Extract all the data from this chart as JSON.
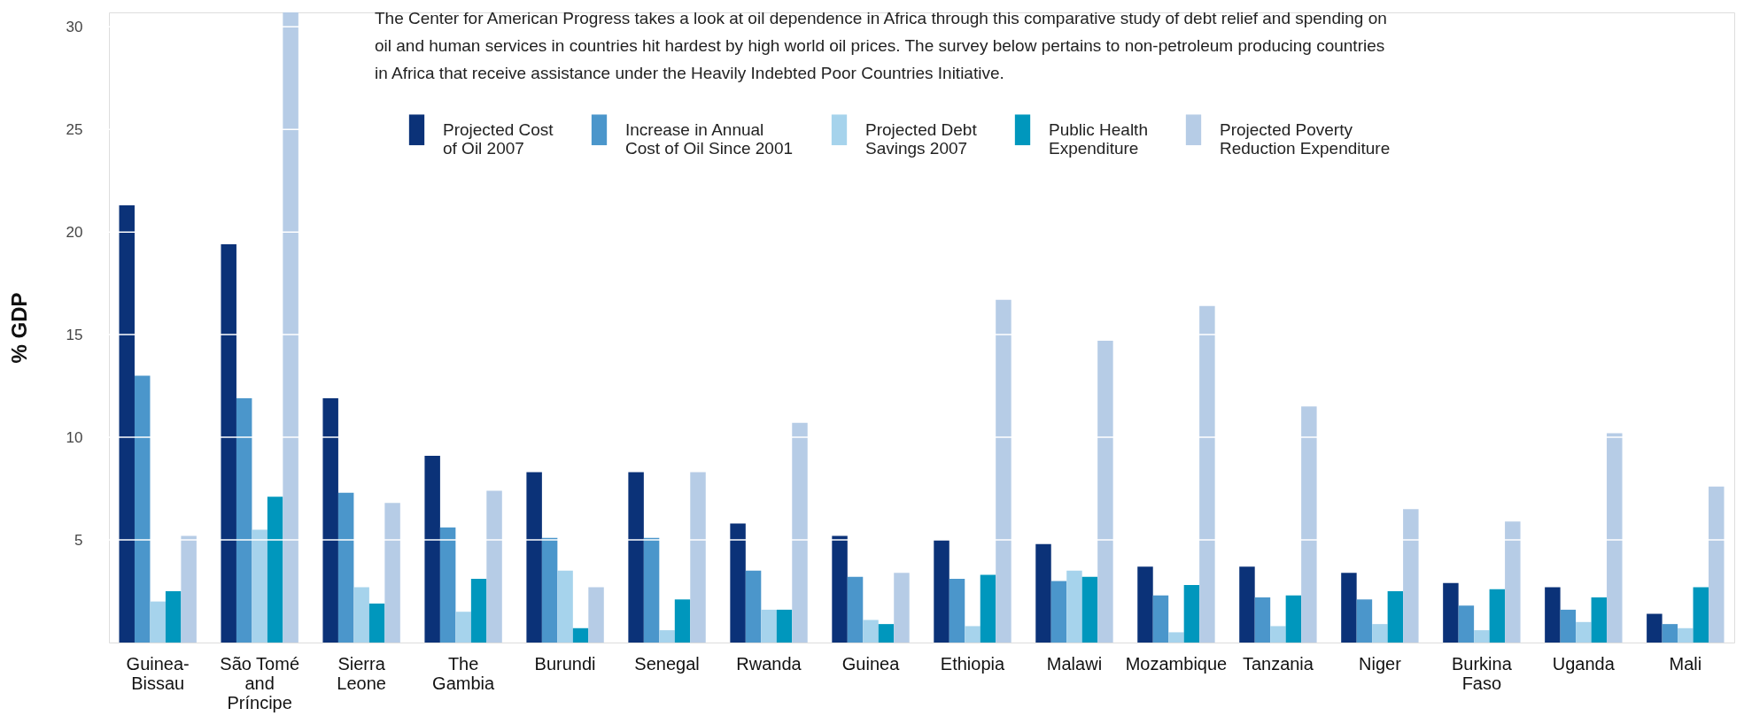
{
  "chart_data": {
    "type": "bar",
    "subtitle": "The Center for American Progress takes a look at oil dependence in Africa through this comparative study of debt relief and spending on oil and human services in countries hit hardest by high world oil prices.  The survey below pertains to non-petroleum producing countries in Africa that receive assistance under the Heavily Indebted Poor Countries Initiative.",
    "ylabel": "% GDP",
    "categories": [
      "Guinea-Bissau",
      "São Tomé and Príncipe",
      "Sierra Leone",
      "The Gambia",
      "Burundi",
      "Senegal",
      "Rwanda",
      "Guinea",
      "Ethiopia",
      "Malawi",
      "Mozambique",
      "Tanzania",
      "Niger",
      "Burkina Faso",
      "Uganda",
      "Mali"
    ],
    "series": [
      {
        "name": "Projected Cost of Oil 2007",
        "color": "#0b3278",
        "values": [
          21.3,
          19.4,
          11.9,
          9.1,
          8.3,
          8.3,
          5.8,
          5.2,
          5.0,
          4.8,
          3.7,
          3.7,
          3.4,
          2.9,
          2.7,
          1.4
        ]
      },
      {
        "name": "Increase in Annual Cost of Oil Since 2001",
        "color": "#4b96cb",
        "values": [
          13.0,
          11.9,
          7.3,
          5.6,
          5.1,
          5.1,
          3.5,
          3.2,
          3.1,
          3.0,
          2.3,
          2.2,
          2.1,
          1.8,
          1.6,
          0.9
        ]
      },
      {
        "name": "Projected Debt Savings  2007",
        "color": "#a6d3ec",
        "values": [
          2.0,
          5.5,
          2.7,
          1.5,
          3.5,
          0.6,
          1.6,
          1.1,
          0.8,
          3.5,
          0.5,
          0.8,
          0.9,
          0.6,
          1.0,
          0.7
        ]
      },
      {
        "name": "Public Health Expenditure",
        "color": "#0097bd",
        "values": [
          2.5,
          7.1,
          1.9,
          3.1,
          0.7,
          2.1,
          1.6,
          0.9,
          3.3,
          3.2,
          2.8,
          2.3,
          2.5,
          2.6,
          2.2,
          2.7
        ]
      },
      {
        "name": "Projected Poverty Reduction Expenditure",
        "color": "#b6cce6",
        "values": [
          5.2,
          30.7,
          6.8,
          7.4,
          2.7,
          8.3,
          10.7,
          3.4,
          16.7,
          14.7,
          16.4,
          11.5,
          6.5,
          5.9,
          10.2,
          7.6
        ]
      }
    ],
    "ylim": [
      0,
      30.7
    ],
    "yticks": [
      5,
      10,
      15,
      20,
      25,
      30
    ],
    "grid": "y",
    "legend": "top"
  }
}
